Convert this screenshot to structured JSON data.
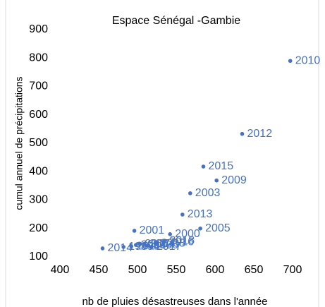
{
  "chart_data": {
    "type": "scatter",
    "title": "Espace Sénégal -Gambie",
    "x_label": "nb de pluies désastreuses dans l'année",
    "y_label": "cumul annuel de précipitations",
    "color": "#4472c4",
    "x": [
      697,
      635,
      585,
      602,
      568,
      558,
      581,
      496,
      542,
      455,
      518,
      534,
      498,
      509,
      514,
      503,
      523,
      492,
      535,
      482
    ],
    "values": [
      790,
      533,
      418,
      369,
      324,
      249,
      200,
      192,
      180,
      130,
      135,
      152,
      142,
      145,
      140,
      145,
      147,
      137,
      157,
      135
    ],
    "point_labels": [
      "2010",
      "2012",
      "2015",
      "2009",
      "2003",
      "2013",
      "2005",
      "2001",
      "2000",
      "2014",
      "2017",
      "2016",
      "2002",
      "2004",
      "2006",
      "2007",
      "2008",
      "2011",
      "2018",
      "1999"
    ],
    "xlim": [
      400,
      700
    ],
    "xticks": [
      400,
      450,
      500,
      550,
      600,
      650,
      700
    ],
    "ylim": [
      100,
      900
    ],
    "yticks": [
      100,
      200,
      300,
      400,
      500,
      600,
      700,
      800,
      900
    ]
  }
}
